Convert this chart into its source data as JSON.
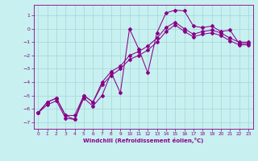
{
  "title": "",
  "xlabel": "Windchill (Refroidissement éolien,°C)",
  "bg_color": "#c8f0f0",
  "grid_color": "#a8dada",
  "line_color": "#880088",
  "xlim": [
    -0.5,
    23.5
  ],
  "ylim": [
    -7.5,
    1.8
  ],
  "yticks": [
    1,
    0,
    -1,
    -2,
    -3,
    -4,
    -5,
    -6,
    -7
  ],
  "xticks": [
    0,
    1,
    2,
    3,
    4,
    5,
    6,
    7,
    8,
    9,
    10,
    11,
    12,
    13,
    14,
    15,
    16,
    17,
    18,
    19,
    20,
    21,
    22,
    23
  ],
  "series1_x": [
    0,
    1,
    2,
    3,
    4,
    5,
    6,
    7,
    8,
    9,
    10,
    11,
    12,
    13,
    14,
    15,
    16,
    17,
    18,
    19,
    20,
    21,
    22,
    23
  ],
  "series1_y": [
    -6.3,
    -5.7,
    -5.4,
    -6.7,
    -6.8,
    -5.2,
    -5.8,
    -5.0,
    -3.3,
    -4.8,
    0.0,
    -1.5,
    -3.3,
    -0.3,
    1.2,
    1.4,
    1.35,
    0.2,
    0.1,
    0.2,
    -0.2,
    -0.1,
    -1.1,
    -1.1
  ],
  "series2_x": [
    0,
    1,
    2,
    3,
    4,
    5,
    6,
    7,
    8,
    9,
    10,
    11,
    12,
    13,
    14,
    15,
    16,
    17,
    18,
    19,
    20,
    21,
    22,
    23
  ],
  "series2_y": [
    -6.3,
    -5.5,
    -5.2,
    -6.5,
    -6.5,
    -5.0,
    -5.5,
    -4.2,
    -3.5,
    -3.0,
    -2.3,
    -2.0,
    -1.6,
    -1.0,
    -0.2,
    0.3,
    -0.2,
    -0.6,
    -0.4,
    -0.3,
    -0.5,
    -0.9,
    -1.2,
    -1.2
  ],
  "series3_x": [
    0,
    1,
    2,
    3,
    4,
    5,
    6,
    7,
    8,
    9,
    10,
    11,
    12,
    13,
    14,
    15,
    16,
    17,
    18,
    19,
    20,
    21,
    22,
    23
  ],
  "series3_y": [
    -6.3,
    -5.5,
    -5.2,
    -6.5,
    -6.8,
    -5.0,
    -5.5,
    -4.0,
    -3.2,
    -2.8,
    -2.0,
    -1.7,
    -1.3,
    -0.7,
    0.1,
    0.5,
    0.0,
    -0.4,
    -0.2,
    -0.1,
    -0.3,
    -0.7,
    -1.0,
    -1.0
  ]
}
